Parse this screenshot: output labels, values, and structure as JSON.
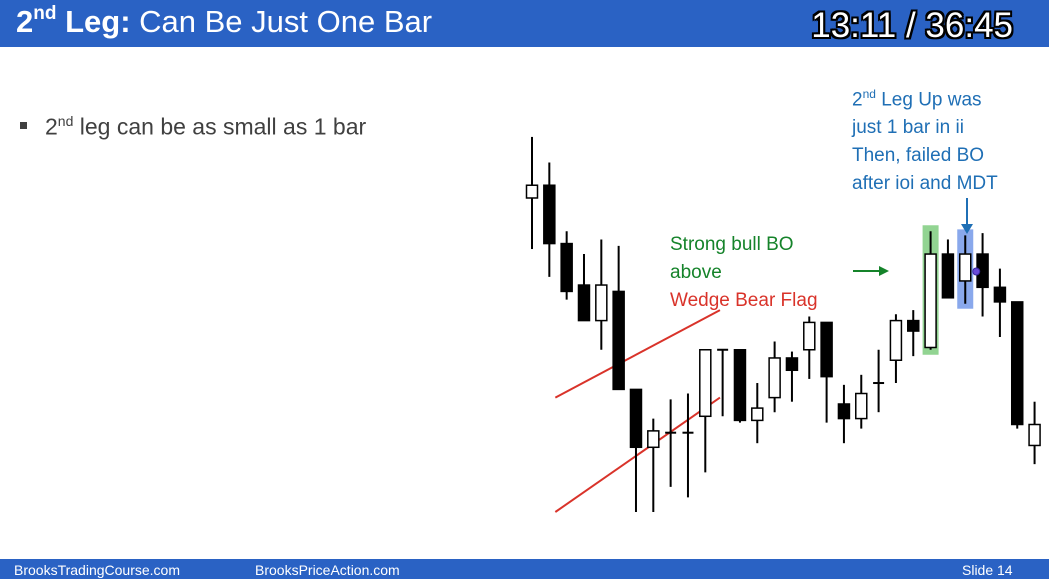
{
  "slide": {
    "title_main": "2",
    "title_sup": "nd",
    "title_bold_rest": " Leg:",
    "title_rest": " Can Be Just One Bar",
    "timer": "13:11 / 36:45",
    "bullet_main": "2",
    "bullet_sup": "nd",
    "bullet_rest": " leg can be as small as 1 bar",
    "footer_left": "BrooksTradingCourse.com",
    "footer_mid": "BrooksPriceAction.com",
    "footer_right": "Slide  14",
    "theme_color": "#2a62c4"
  },
  "annotations": {
    "blue_line1_main": "2",
    "blue_line1_sup": "nd",
    "blue_line1_rest": " Leg Up was",
    "blue_line2": "just 1 bar in ii",
    "blue_line3": "Then, failed BO",
    "blue_line4": "after ioi and MDT",
    "green_line1": "Strong bull BO",
    "green_line2": "above",
    "red_line1": "Wedge Bear Flag",
    "blue_color": "#1f6fb5",
    "green_color": "#15832a",
    "red_color": "#d9332a"
  },
  "chart_data": {
    "type": "candlestick",
    "ylim": [
      0,
      100
    ],
    "bars": [
      {
        "o": 68.9,
        "h": 82.3,
        "l": 57.7,
        "c": 71.7
      },
      {
        "o": 71.7,
        "h": 76.7,
        "l": 51.6,
        "c": 58.9
      },
      {
        "o": 58.9,
        "h": 61.6,
        "l": 46.6,
        "c": 48.4
      },
      {
        "o": 49.8,
        "h": 56.6,
        "l": 42.0,
        "c": 42.0
      },
      {
        "o": 42.0,
        "h": 59.8,
        "l": 35.6,
        "c": 49.8
      },
      {
        "o": 48.4,
        "h": 58.4,
        "l": 26.9,
        "c": 26.9
      },
      {
        "o": 26.9,
        "h": 26.9,
        "l": 0.0,
        "c": 14.2
      },
      {
        "o": 14.2,
        "h": 20.5,
        "l": 0.0,
        "c": 17.8
      },
      {
        "o": 17.4,
        "h": 24.7,
        "l": 5.5,
        "c": 17.4
      },
      {
        "o": 17.4,
        "h": 26.0,
        "l": 3.2,
        "c": 17.4
      },
      {
        "o": 21.0,
        "h": 35.6,
        "l": 8.7,
        "c": 35.6
      },
      {
        "o": 35.6,
        "h": 35.6,
        "l": 21.0,
        "c": 35.6
      },
      {
        "o": 35.6,
        "h": 35.6,
        "l": 19.6,
        "c": 20.1
      },
      {
        "o": 20.1,
        "h": 28.3,
        "l": 15.1,
        "c": 22.8
      },
      {
        "o": 25.1,
        "h": 37.4,
        "l": 21.9,
        "c": 33.8
      },
      {
        "o": 33.8,
        "h": 35.2,
        "l": 24.2,
        "c": 31.1
      },
      {
        "o": 35.6,
        "h": 42.9,
        "l": 29.2,
        "c": 41.6
      },
      {
        "o": 41.6,
        "h": 41.6,
        "l": 19.6,
        "c": 29.7
      },
      {
        "o": 23.7,
        "h": 27.9,
        "l": 15.1,
        "c": 20.5
      },
      {
        "o": 20.5,
        "h": 30.1,
        "l": 18.3,
        "c": 26.0
      },
      {
        "o": 28.3,
        "h": 35.6,
        "l": 21.9,
        "c": 28.3
      },
      {
        "o": 33.3,
        "h": 43.4,
        "l": 28.3,
        "c": 42.0
      },
      {
        "o": 42.0,
        "h": 44.3,
        "l": 34.2,
        "c": 39.7
      },
      {
        "o": 36.1,
        "h": 61.6,
        "l": 35.6,
        "c": 56.6
      },
      {
        "o": 56.6,
        "h": 59.8,
        "l": 47.0,
        "c": 47.0
      },
      {
        "o": 50.7,
        "h": 60.7,
        "l": 45.7,
        "c": 56.6
      },
      {
        "o": 56.6,
        "h": 61.2,
        "l": 42.9,
        "c": 49.3
      },
      {
        "o": 49.3,
        "h": 53.4,
        "l": 38.4,
        "c": 46.1
      },
      {
        "o": 46.1,
        "h": 46.1,
        "l": 18.3,
        "c": 19.2
      },
      {
        "o": 14.6,
        "h": 24.2,
        "l": 10.5,
        "c": 19.2
      }
    ],
    "highlights": [
      {
        "bar": 23,
        "color": "#49b84a",
        "label": "Strong bull BO"
      },
      {
        "bar": 25,
        "color": "#3a6ee0",
        "label": "2nd Leg Up"
      }
    ],
    "wedge_lines": [
      {
        "from": [
          1,
          25.1
        ],
        "to": [
          10.5,
          44.3
        ]
      },
      {
        "from": [
          1,
          0.0
        ],
        "to": [
          10.5,
          25.1
        ]
      }
    ]
  }
}
